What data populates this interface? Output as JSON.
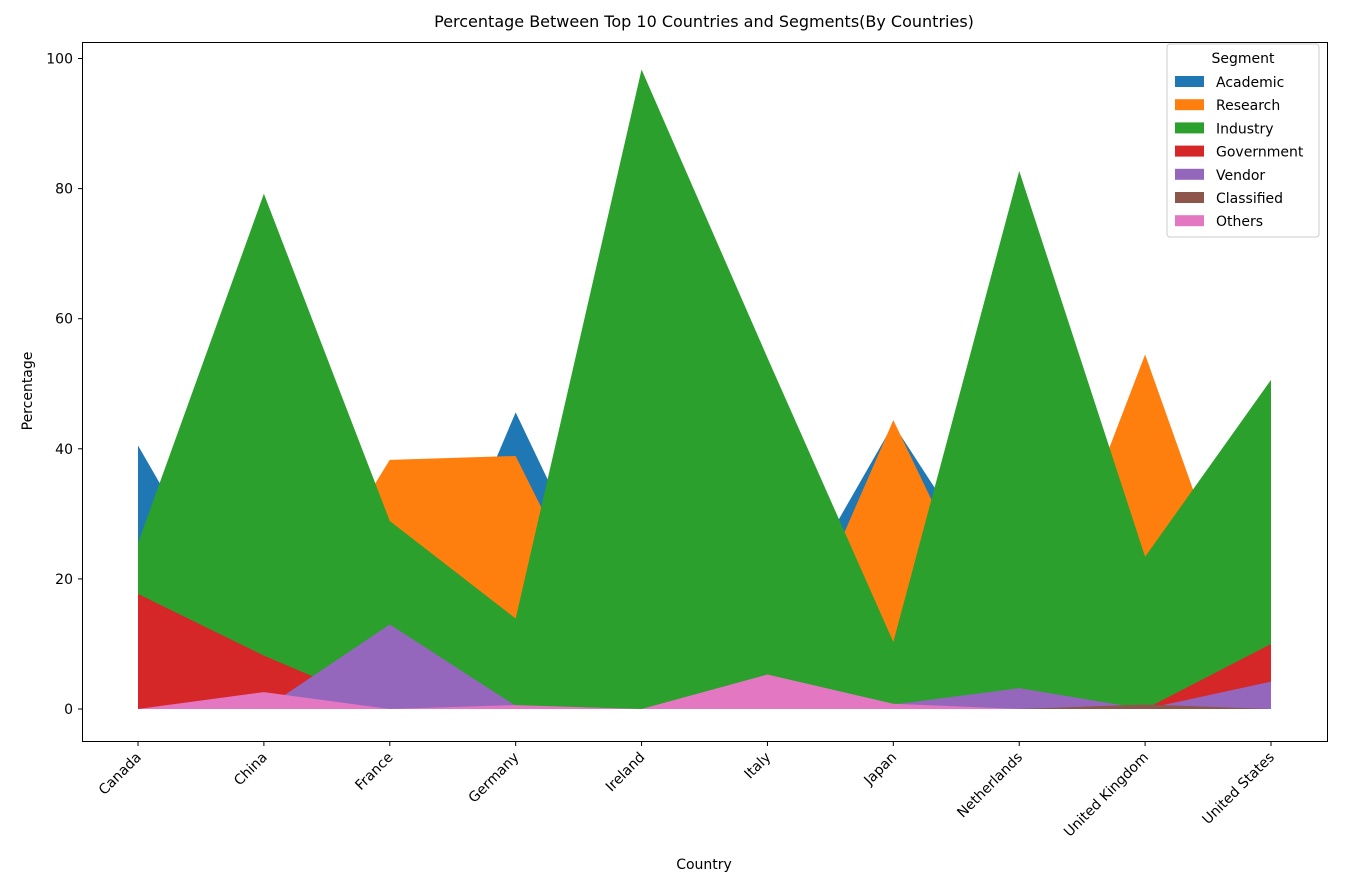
{
  "chart_data": {
    "type": "area",
    "title": "Percentage Between Top 10 Countries and Segments(By Countries)",
    "xlabel": "Country",
    "ylabel": "Percentage",
    "categories": [
      "Canada",
      "China",
      "France",
      "Germany",
      "Ireland",
      "Italy",
      "Japan",
      "Netherlands",
      "United Kingdom",
      "United States"
    ],
    "ylim": [
      -5,
      103
    ],
    "yticks": [
      0,
      20,
      40,
      60,
      80,
      100
    ],
    "grid": false,
    "legend": {
      "title": "Segment",
      "position": "top-right"
    },
    "series": [
      {
        "name": "Academic",
        "color": "#1f77b4",
        "values": [
          40.5,
          7.0,
          0.0,
          45.6,
          5.0,
          10.0,
          43.8,
          14.0,
          6.0,
          24.7
        ]
      },
      {
        "name": "Research",
        "color": "#ff7f0e",
        "values": [
          0.0,
          7.0,
          38.3,
          38.9,
          0.0,
          0.0,
          44.4,
          4.0,
          54.5,
          0.0
        ]
      },
      {
        "name": "Industry",
        "color": "#2ca02c",
        "values": [
          25.5,
          79.2,
          28.9,
          13.9,
          98.3,
          54.0,
          10.3,
          82.7,
          23.4,
          50.6
        ]
      },
      {
        "name": "Government",
        "color": "#d62728",
        "values": [
          17.7,
          8.2,
          0.0,
          0.0,
          0.0,
          0.0,
          0.0,
          0.0,
          0.0,
          10.0
        ]
      },
      {
        "name": "Vendor",
        "color": "#9467bd",
        "values": [
          0.0,
          0.0,
          13.0,
          0.5,
          0.0,
          0.0,
          0.7,
          3.2,
          0.0,
          4.2
        ]
      },
      {
        "name": "Classified",
        "color": "#8c564b",
        "values": [
          0.0,
          0.0,
          0.0,
          0.0,
          0.0,
          0.0,
          0.0,
          0.0,
          0.7,
          0.0
        ]
      },
      {
        "name": "Others",
        "color": "#e377c2",
        "values": [
          0.0,
          2.6,
          0.0,
          0.6,
          0.0,
          5.3,
          0.8,
          0.0,
          0.0,
          0.0
        ]
      }
    ]
  }
}
